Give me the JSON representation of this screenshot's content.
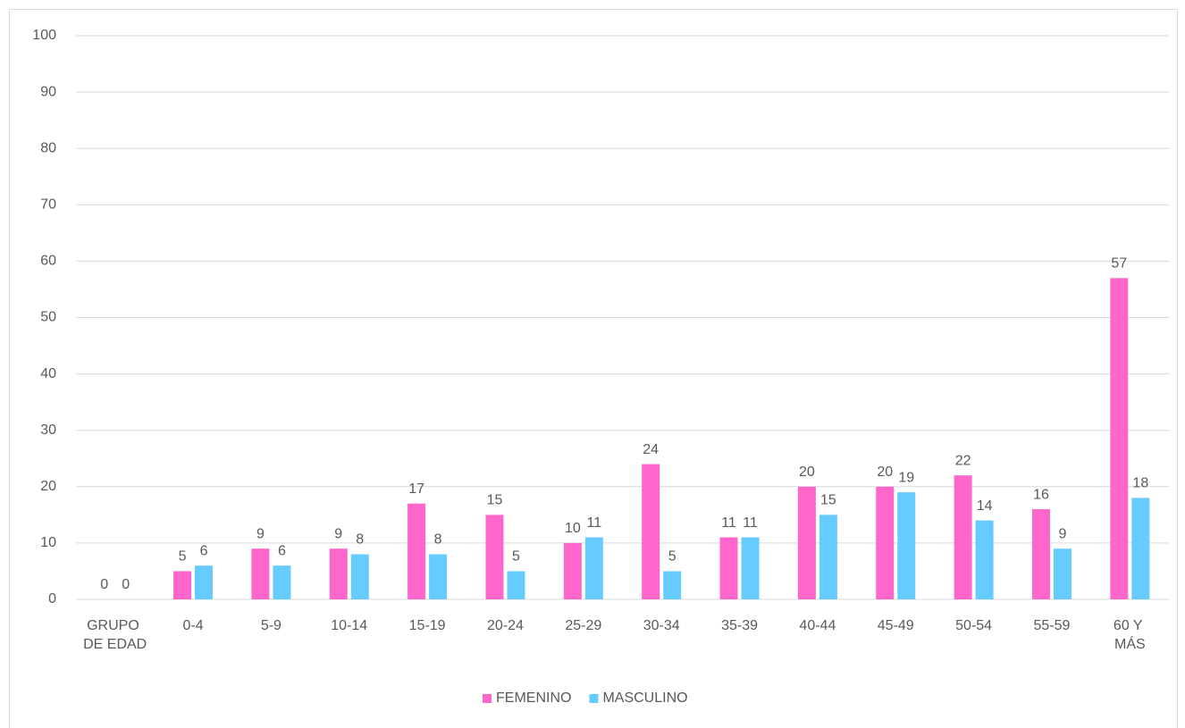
{
  "chart_data": {
    "type": "bar",
    "categories": [
      "GRUPO DE EDAD",
      "0-4",
      "5-9",
      "10-14",
      "15-19",
      "20-24",
      "25-29",
      "30-34",
      "35-39",
      "40-44",
      "45-49",
      "50-54",
      "55-59",
      "60 Y MÁS"
    ],
    "series": [
      {
        "name": "FEMENINO",
        "color": "#ff66cc",
        "values": [
          0,
          5,
          9,
          9,
          17,
          15,
          10,
          24,
          11,
          20,
          20,
          22,
          16,
          57
        ]
      },
      {
        "name": "MASCULINO",
        "color": "#66ccff",
        "values": [
          0,
          6,
          6,
          8,
          8,
          5,
          11,
          5,
          11,
          15,
          19,
          14,
          9,
          18
        ]
      }
    ],
    "ylim": [
      0,
      100
    ],
    "yticks": [
      0,
      10,
      20,
      30,
      40,
      50,
      60,
      70,
      80,
      90,
      100
    ],
    "grid": true,
    "legend": "bottom"
  }
}
